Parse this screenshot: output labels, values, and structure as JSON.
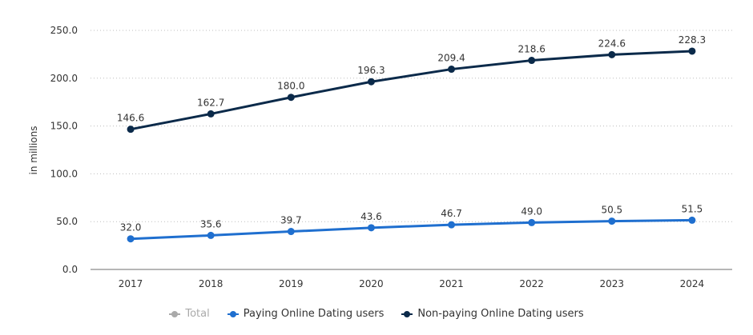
{
  "chart_data": {
    "type": "line",
    "title": "",
    "xlabel": "",
    "ylabel": "in millions",
    "ylim": [
      0,
      250
    ],
    "yticks": [
      "0.0",
      "50.0",
      "100.0",
      "150.0",
      "200.0",
      "250.0"
    ],
    "grid": true,
    "legend_position": "bottom",
    "categories": [
      "2017",
      "2018",
      "2019",
      "2020",
      "2021",
      "2022",
      "2023",
      "2024"
    ],
    "series": [
      {
        "name": "Total",
        "visible": false,
        "color": "#aaaaaa",
        "values": []
      },
      {
        "name": "Paying Online Dating users",
        "visible": true,
        "color": "#1f6fcf",
        "values": [
          32.0,
          35.6,
          39.7,
          43.6,
          46.7,
          49.0,
          50.5,
          51.5
        ],
        "labels": [
          "32.0",
          "35.6",
          "39.7",
          "43.6",
          "46.7",
          "49.0",
          "50.5",
          "51.5"
        ]
      },
      {
        "name": "Non-paying Online Dating users",
        "visible": true,
        "color": "#0b2a4a",
        "values": [
          146.6,
          162.7,
          180.0,
          196.3,
          209.4,
          218.6,
          224.6,
          228.3
        ],
        "labels": [
          "146.6",
          "162.7",
          "180.0",
          "196.3",
          "209.4",
          "218.6",
          "224.6",
          "228.3"
        ]
      }
    ]
  },
  "legend": {
    "items": [
      {
        "label": "Total",
        "color": "#aaaaaa",
        "disabled": true
      },
      {
        "label": "Paying Online Dating users",
        "color": "#1f6fcf",
        "disabled": false
      },
      {
        "label": "Non-paying Online Dating users",
        "color": "#0b2a4a",
        "disabled": false
      }
    ]
  }
}
